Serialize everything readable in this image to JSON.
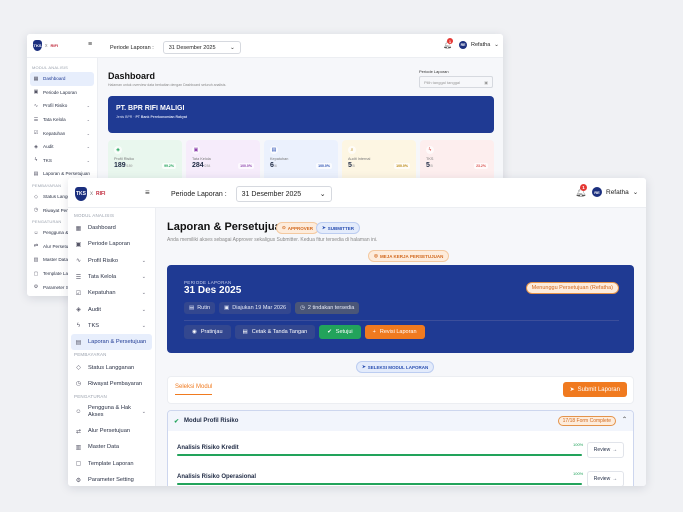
{
  "back": {
    "logo": {
      "mark": "TKS",
      "x": "x",
      "partner": "RIFI"
    },
    "period_label": "Periode Laporan :",
    "period_value": "31 Desember 2025",
    "bell_count": "1",
    "user": {
      "initials": "RE",
      "name": "Refatha"
    },
    "sidebar": {
      "section1": "MODUL ANALISIS",
      "items": [
        {
          "label": "Dashboard",
          "icon": "grid-icon"
        },
        {
          "label": "Periode Laporan",
          "icon": "calendar-icon"
        },
        {
          "label": "Profil Risiko",
          "icon": "pulse-icon"
        },
        {
          "label": "Tata Kelola",
          "icon": "sliders-icon"
        },
        {
          "label": "Kepatuhan",
          "icon": "check-icon"
        },
        {
          "label": "Audit",
          "icon": "shield-icon"
        },
        {
          "label": "TKS",
          "icon": "wave-icon"
        },
        {
          "label": "Laporan & Persetujuan",
          "icon": "doc-icon"
        }
      ],
      "section2": "PEMBAYARAN",
      "items2": [
        {
          "label": "Status Langganan",
          "icon": "tag-icon"
        },
        {
          "label": "Riwayat Pembayaran",
          "icon": "history-icon"
        }
      ],
      "section3": "PENGATURAN",
      "items3": [
        {
          "label": "Pengguna & Hak Akses",
          "icon": "users-icon"
        },
        {
          "label": "Alur Persetujuan",
          "icon": "flow-icon"
        },
        {
          "label": "Master Data",
          "icon": "db-icon"
        },
        {
          "label": "Template Lap",
          "icon": "file-icon"
        },
        {
          "label": "Parameter Se",
          "icon": "gear-icon"
        }
      ]
    },
    "title": "Dashboard",
    "subtitle": "Halaman untuk overview data berkaitan dengan Dashboard seluruh analisis.",
    "period_input_label": "Periode Laporan",
    "period_input_placeholder": "Pilih tanggal tanggal",
    "bank": {
      "name": "PT. BPR RIFI MALIGI",
      "kind_label": "Jenis BPR",
      "kind": "PT Bank Perekonomian Rakyat"
    },
    "cards": [
      {
        "label": "Profil Risiko",
        "value": "189",
        "total": "/189",
        "pct": "99.2%",
        "color": "#e9f7ee",
        "accent": "#22a35b",
        "icon": "shield-icon"
      },
      {
        "label": "Tata Kelola",
        "value": "284",
        "total": "/284",
        "pct": "100.0%",
        "color": "#f6ecfb",
        "accent": "#8e44ad",
        "icon": "lock-icon"
      },
      {
        "label": "Kepatuhan",
        "value": "6",
        "total": "/6",
        "pct": "100.0%",
        "color": "#ebf1fd",
        "accent": "#2a4fb1",
        "icon": "clipboard-icon"
      },
      {
        "label": "Audit Internal",
        "value": "5",
        "total": "/5",
        "pct": "100.0%",
        "color": "#fdf6e3",
        "accent": "#b8860b",
        "icon": "search-icon"
      },
      {
        "label": "TKS",
        "value": "5",
        "total": "/5",
        "pct": "23.2%",
        "color": "#fdeeee",
        "accent": "#d9534f",
        "icon": "wave-icon"
      }
    ]
  },
  "front": {
    "logo": {
      "mark": "TKS",
      "x": "x",
      "partner": "RIFI"
    },
    "period_label": "Periode Laporan :",
    "period_value": "31 Desember 2025",
    "bell_count": "1",
    "user": {
      "initials": "RE",
      "name": "Refatha"
    },
    "sidebar": {
      "section1": "MODUL ANALISIS",
      "items": [
        {
          "label": "Dashboard",
          "icon": "grid-icon"
        },
        {
          "label": "Periode Laporan",
          "icon": "calendar-icon"
        },
        {
          "label": "Profil Risiko",
          "icon": "pulse-icon"
        },
        {
          "label": "Tata Kelola",
          "icon": "sliders-icon"
        },
        {
          "label": "Kepatuhan",
          "icon": "check-icon"
        },
        {
          "label": "Audit",
          "icon": "shield-icon"
        },
        {
          "label": "TKS",
          "icon": "wave-icon"
        },
        {
          "label": "Laporan & Persetujuan",
          "icon": "doc-icon"
        }
      ],
      "section2": "PEMBAYARAN",
      "items2": [
        {
          "label": "Status Langganan",
          "icon": "tag-icon"
        },
        {
          "label": "Riwayat Pembayaran",
          "icon": "history-icon"
        }
      ],
      "section3": "PENGATURAN",
      "items3": [
        {
          "label": "Pengguna & Hak Akses",
          "icon": "users-icon"
        },
        {
          "label": "Alur Persetujuan",
          "icon": "flow-icon"
        },
        {
          "label": "Master Data",
          "icon": "db-icon"
        },
        {
          "label": "Template Laporan",
          "icon": "file-icon"
        },
        {
          "label": "Parameter Setting",
          "icon": "gear-icon"
        }
      ]
    },
    "title": "Laporan & Persetujuan",
    "badge_approver": "APPROVER",
    "badge_submitter": "SUBMITTER",
    "intro": "Anda memiliki akses sebagai Approver sekaligus Submitter. Kedua fitur tersedia di halaman ini.",
    "mode_badge": "MEJA KERJA PERSETUJUAN",
    "report": {
      "period_label": "PERIODE LAPORAN",
      "period_value": "31 Des 2025",
      "status": "Menunggu Persetujuan (Refatha)",
      "chip_type": "Rutin",
      "chip_submitted": "Diajukan 19 Mar 2026",
      "chip_actions": "2 tindakan tersedia",
      "btn_preview": "Pratinjau",
      "btn_print": "Cetak & Tanda Tangan",
      "btn_approve": "Setujui",
      "btn_revise": "Revisi Laporan"
    },
    "select_badge": "SELEKSI MODUL LAPORAN",
    "tab": "Seleksi Modul",
    "submit": "Submit Laporan",
    "module": {
      "title": "Modul Profil Risiko",
      "count": "17/18 Form Complete",
      "rows": [
        {
          "name": "Analisis Risiko Kredit",
          "pct": "100%",
          "progress": 1.0,
          "action": "Review"
        },
        {
          "name": "Analisis Risiko Operasional",
          "pct": "100%",
          "progress": 1.0,
          "action": "Review"
        }
      ]
    },
    "colors": {
      "primary": "#1f3a93",
      "accent": "#f07a1f",
      "success": "#22a35b"
    }
  }
}
